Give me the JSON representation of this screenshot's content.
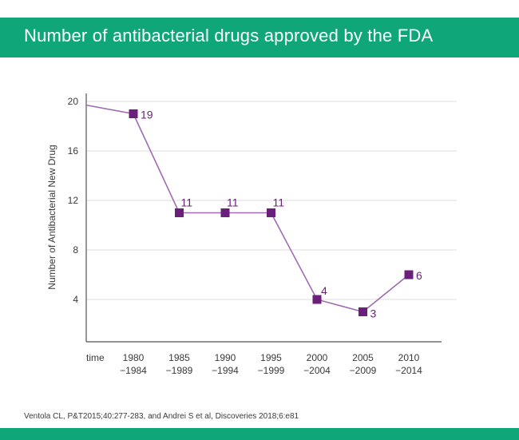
{
  "header": {
    "title": "Number of antibacterial drugs approved by the FDA"
  },
  "footer": {
    "source": "Ventola CL, P&T2015;40:277-283, and Andrei S et al, Discoveries 2018;6:e81"
  },
  "colors": {
    "accent": "#0fa77a",
    "series": "#6a1f7a",
    "line": "#a06bb0",
    "grid": "#dddddd",
    "axis": "#555555"
  },
  "chart_data": {
    "type": "line",
    "title": "Number of antibacterial drugs approved by the FDA",
    "xlabel": "time",
    "ylabel": "Number of Antibacterial New Drug",
    "categories": [
      [
        "1980",
        "−1984"
      ],
      [
        "1985",
        "−1989"
      ],
      [
        "1990",
        "−1994"
      ],
      [
        "1995",
        "−1999"
      ],
      [
        "2000",
        "−2004"
      ],
      [
        "2005",
        "−2009"
      ],
      [
        "2010",
        "−2014"
      ]
    ],
    "values": [
      19,
      11,
      11,
      11,
      4,
      3,
      6
    ],
    "data_labels": [
      "19",
      "11",
      "11",
      "11",
      "4",
      "3",
      "6"
    ],
    "line_start_value": 19.7,
    "yticks": [
      4,
      8,
      12,
      16,
      20
    ],
    "ylim": [
      0,
      20
    ],
    "grid": true,
    "marker": "square"
  }
}
